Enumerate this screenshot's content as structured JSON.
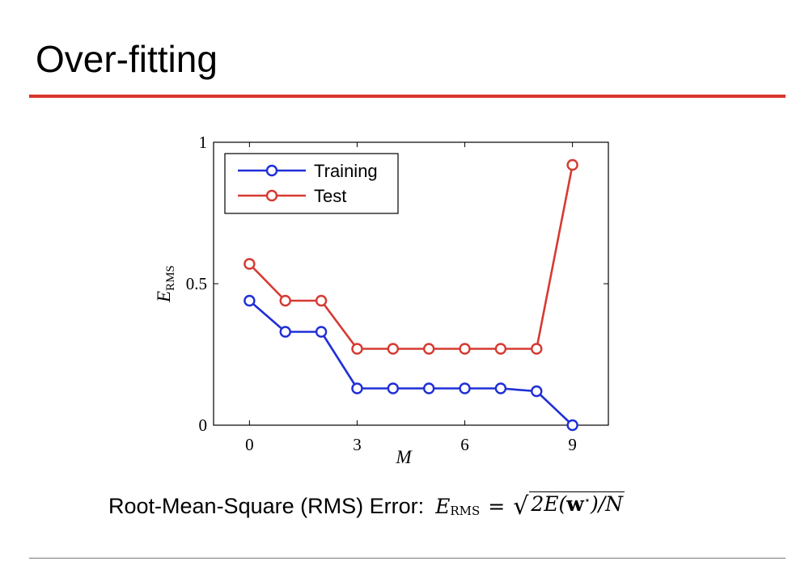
{
  "slide": {
    "title": "Over-fitting",
    "caption": "Root-Mean-Square (RMS) Error:",
    "formula": {
      "lhs": "E",
      "lhs_sub": "RMS",
      "equals": "=",
      "sqrt": "√",
      "part1": "2E(",
      "bold": "w",
      "sup": "⋆",
      "part2": ")/N"
    }
  },
  "colors": {
    "title_rule": "#d9362c",
    "training": "#1f2fd6",
    "test": "#d63a31"
  },
  "chart_data": {
    "type": "line",
    "title": "",
    "xlabel": "M",
    "ylabel": "E",
    "ylabel_sub": "RMS",
    "xlim": [
      -1,
      10
    ],
    "ylim": [
      0,
      1
    ],
    "xticks": [
      0,
      3,
      6,
      9
    ],
    "yticks": [
      0,
      0.5,
      1
    ],
    "ytick_labels": [
      "0",
      "0.5",
      "1"
    ],
    "grid": false,
    "legend_position": "top-left",
    "x": [
      0,
      1,
      2,
      3,
      4,
      5,
      6,
      7,
      8,
      9
    ],
    "series": [
      {
        "name": "Training",
        "color": "#1f2fd6",
        "values": [
          0.44,
          0.33,
          0.33,
          0.13,
          0.13,
          0.13,
          0.13,
          0.13,
          0.12,
          0.0
        ]
      },
      {
        "name": "Test",
        "color": "#d63a31",
        "values": [
          0.57,
          0.44,
          0.44,
          0.27,
          0.27,
          0.27,
          0.27,
          0.27,
          0.27,
          0.92
        ]
      }
    ]
  }
}
